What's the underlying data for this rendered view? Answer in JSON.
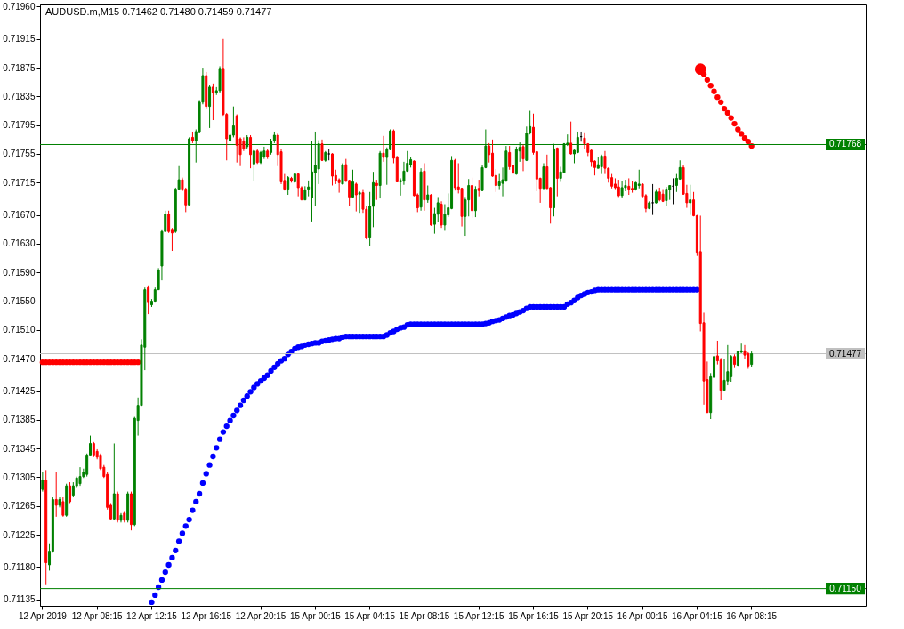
{
  "chart_data": {
    "type": "candlestick",
    "title": "AUDUSD.m,M15  0.71462 0.71480 0.71459 0.71477",
    "categories": [
      "12 Apr 2019",
      null,
      null,
      null,
      null,
      null,
      null,
      null,
      null,
      null,
      null,
      null,
      null,
      null,
      null,
      null,
      "12 Apr 08:15",
      null,
      null,
      null,
      null,
      null,
      null,
      null,
      null,
      null,
      null,
      null,
      null,
      null,
      null,
      null,
      "12 Apr 12:15",
      null,
      null,
      null,
      null,
      null,
      null,
      null,
      null,
      null,
      null,
      null,
      null,
      null,
      null,
      null,
      "12 Apr 16:15",
      null,
      null,
      null,
      null,
      null,
      null,
      null,
      null,
      null,
      null,
      null,
      null,
      null,
      null,
      null,
      "12 Apr 20:15",
      null,
      null,
      null,
      null,
      null,
      null,
      null,
      null,
      null,
      null,
      null,
      null,
      null,
      null,
      null,
      "15 Apr 00:15",
      null,
      null,
      null,
      null,
      null,
      null,
      null,
      null,
      null,
      null,
      null,
      null,
      null,
      null,
      null,
      "15 Apr 04:15",
      null,
      null,
      null,
      null,
      null,
      null,
      null,
      null,
      null,
      null,
      null,
      null,
      null,
      null,
      null,
      "15 Apr 08:15",
      null,
      null,
      null,
      null,
      null,
      null,
      null,
      null,
      null,
      null,
      null,
      null,
      null,
      null,
      null,
      "15 Apr 12:15",
      null,
      null,
      null,
      null,
      null,
      null,
      null,
      null,
      null,
      null,
      null,
      null,
      null,
      null,
      null,
      "15 Apr 16:15",
      null,
      null,
      null,
      null,
      null,
      null,
      null,
      null,
      null,
      null,
      null,
      null,
      null,
      null,
      null,
      "15 Apr 20:15",
      null,
      null,
      null,
      null,
      null,
      null,
      null,
      null,
      null,
      null,
      null,
      null,
      null,
      null,
      null,
      "16 Apr 00:15",
      null,
      null,
      null,
      null,
      null,
      null,
      null,
      null,
      null,
      null,
      null,
      null,
      null,
      null,
      null,
      "16 Apr 04:15",
      null,
      null,
      null,
      null,
      null,
      null,
      null,
      null,
      null,
      null,
      null,
      null,
      null,
      null,
      null,
      "16 Apr 08:15"
    ],
    "ohlc": [
      [
        0.71288,
        0.71312,
        0.71285,
        0.71301
      ],
      [
        0.71301,
        0.71315,
        0.71156,
        0.71186
      ],
      [
        0.71183,
        0.71213,
        0.71175,
        0.71202
      ],
      [
        0.71202,
        0.71277,
        0.712,
        0.71274
      ],
      [
        0.71274,
        0.71312,
        0.7125,
        0.71266
      ],
      [
        0.71266,
        0.71277,
        0.71263,
        0.71274
      ],
      [
        0.71271,
        0.71277,
        0.7125,
        0.71252
      ],
      [
        0.71252,
        0.71296,
        0.7125,
        0.71293
      ],
      [
        0.71293,
        0.71298,
        0.71269,
        0.71271
      ],
      [
        0.7128,
        0.71298,
        0.71277,
        0.71293
      ],
      [
        0.71293,
        0.71306,
        0.7129,
        0.71304
      ],
      [
        0.71296,
        0.71319,
        0.71293,
        0.71306
      ],
      [
        0.71306,
        0.71317,
        0.71304,
        0.71312
      ],
      [
        0.71309,
        0.71338,
        0.71306,
        0.71336
      ],
      [
        0.71336,
        0.71363,
        0.71336,
        0.71352
      ],
      [
        0.71352,
        0.71354,
        0.71333,
        0.71336
      ],
      [
        0.71341,
        0.71344,
        0.7133,
        0.71333
      ],
      [
        0.71336,
        0.71338,
        0.71315,
        0.71317
      ],
      [
        0.71319,
        0.71322,
        0.71304,
        0.71306
      ],
      [
        0.71309,
        0.71312,
        0.7126,
        0.71263
      ],
      [
        0.71266,
        0.71269,
        0.71245,
        0.71247
      ],
      [
        0.71247,
        0.71352,
        0.71246,
        0.71282
      ],
      [
        0.71282,
        0.71285,
        0.71242,
        0.71245
      ],
      [
        0.71245,
        0.71255,
        0.71242,
        0.71252
      ],
      [
        0.71255,
        0.71258,
        0.71242,
        0.71245
      ],
      [
        0.71245,
        0.71285,
        0.71242,
        0.71282
      ],
      [
        0.71282,
        0.71285,
        0.71231,
        0.71239
      ],
      [
        0.71239,
        0.71389,
        0.71237,
        0.71387
      ],
      [
        0.71384,
        0.71416,
        0.71363,
        0.71405
      ],
      [
        0.71405,
        0.71497,
        0.71405,
        0.71489
      ],
      [
        0.71486,
        0.71569,
        0.71454,
        0.71566
      ],
      [
        0.71569,
        0.71572,
        0.71532,
        0.71548
      ],
      [
        0.71545,
        0.71553,
        0.71542,
        0.7155
      ],
      [
        0.7155,
        0.71569,
        0.71548,
        0.71566
      ],
      [
        0.71566,
        0.71596,
        0.71566,
        0.71593
      ],
      [
        0.71599,
        0.7165,
        0.71579,
        0.71647
      ],
      [
        0.71647,
        0.71676,
        0.71647,
        0.71671
      ],
      [
        0.71671,
        0.71676,
        0.71645,
        0.71647
      ],
      [
        0.7165,
        0.71652,
        0.7162,
        0.71645
      ],
      [
        0.71647,
        0.71708,
        0.71645,
        0.71706
      ],
      [
        0.71706,
        0.71738,
        0.71706,
        0.71719
      ],
      [
        0.71719,
        0.71722,
        0.71703,
        0.71706
      ],
      [
        0.71706,
        0.71708,
        0.71674,
        0.71684
      ],
      [
        0.71684,
        0.71778,
        0.71684,
        0.71776
      ],
      [
        0.71778,
        0.71786,
        0.7177,
        0.71773
      ],
      [
        0.71773,
        0.71789,
        0.71743,
        0.71786
      ],
      [
        0.71786,
        0.7183,
        0.71784,
        0.71827
      ],
      [
        0.71827,
        0.71875,
        0.71824,
        0.71864
      ],
      [
        0.71864,
        0.71869,
        0.71818,
        0.71821
      ],
      [
        0.71821,
        0.71851,
        0.71791,
        0.71848
      ],
      [
        0.71848,
        0.71853,
        0.71802,
        0.7184
      ],
      [
        0.7184,
        0.71848,
        0.71837,
        0.71843
      ],
      [
        0.71843,
        0.71877,
        0.7184,
        0.71874
      ],
      [
        0.71874,
        0.71915,
        0.71808,
        0.7181
      ],
      [
        0.7181,
        0.71812,
        0.71746,
        0.71776
      ],
      [
        0.71773,
        0.71784,
        0.7177,
        0.71781
      ],
      [
        0.71781,
        0.71821,
        0.71778,
        0.71794
      ],
      [
        0.71808,
        0.7181,
        0.71743,
        0.71767
      ],
      [
        0.71776,
        0.71778,
        0.71738,
        0.71754
      ],
      [
        0.71773,
        0.71778,
        0.71759,
        0.71762
      ],
      [
        0.71765,
        0.71781,
        0.71762,
        0.71778
      ],
      [
        0.71778,
        0.71781,
        0.71735,
        0.71754
      ],
      [
        0.71741,
        0.71762,
        0.71717,
        0.71759
      ],
      [
        0.71759,
        0.71762,
        0.71741,
        0.71743
      ],
      [
        0.71743,
        0.71759,
        0.71741,
        0.71757
      ],
      [
        0.71751,
        0.71765,
        0.71748,
        0.71759
      ],
      [
        0.71759,
        0.71762,
        0.71748,
        0.71751
      ],
      [
        0.71757,
        0.71776,
        0.71754,
        0.71773
      ],
      [
        0.71773,
        0.71786,
        0.7177,
        0.71781
      ],
      [
        0.71781,
        0.71784,
        0.71738,
        0.71754
      ],
      [
        0.71758,
        0.71762,
        0.71713,
        0.71716
      ],
      [
        0.71718,
        0.71727,
        0.71704,
        0.71706
      ],
      [
        0.71706,
        0.71724,
        0.71698,
        0.71722
      ],
      [
        0.71721,
        0.71723,
        0.71715,
        0.71717
      ],
      [
        0.71716,
        0.71729,
        0.71714,
        0.71727
      ],
      [
        0.71727,
        0.71728,
        0.71696,
        0.71708
      ],
      [
        0.71708,
        0.7171,
        0.71691,
        0.71691
      ],
      [
        0.71691,
        0.7171,
        0.71691,
        0.71705
      ],
      [
        0.71706,
        0.71718,
        0.71696,
        0.71709
      ],
      [
        0.71694,
        0.71773,
        0.71661,
        0.7173
      ],
      [
        0.71729,
        0.71786,
        0.71683,
        0.71739
      ],
      [
        0.71734,
        0.71774,
        0.71713,
        0.71769
      ],
      [
        0.71769,
        0.71775,
        0.71745,
        0.71746
      ],
      [
        0.71746,
        0.71759,
        0.71744,
        0.71757
      ],
      [
        0.71755,
        0.71762,
        0.71746,
        0.71755
      ],
      [
        0.71755,
        0.71756,
        0.71711,
        0.71724
      ],
      [
        0.71725,
        0.71733,
        0.71713,
        0.71718
      ],
      [
        0.71719,
        0.71721,
        0.71701,
        0.71715
      ],
      [
        0.71713,
        0.71742,
        0.71713,
        0.7174
      ],
      [
        0.7174,
        0.71748,
        0.71716,
        0.71717
      ],
      [
        0.71718,
        0.71719,
        0.71682,
        0.71695
      ],
      [
        0.71695,
        0.71733,
        0.71694,
        0.71716
      ],
      [
        0.71713,
        0.71715,
        0.71675,
        0.71698
      ],
      [
        0.71699,
        0.71703,
        0.71673,
        0.71701
      ],
      [
        0.71701,
        0.71706,
        0.71673,
        0.71678
      ],
      [
        0.71678,
        0.71683,
        0.71636,
        0.71638
      ],
      [
        0.71639,
        0.71702,
        0.71627,
        0.71682
      ],
      [
        0.71682,
        0.7173,
        0.71653,
        0.71715
      ],
      [
        0.71714,
        0.71719,
        0.71691,
        0.71711
      ],
      [
        0.71711,
        0.71759,
        0.71693,
        0.71756
      ],
      [
        0.71756,
        0.7178,
        0.71744,
        0.7175
      ],
      [
        0.7175,
        0.71764,
        0.71712,
        0.71761
      ],
      [
        0.71761,
        0.71789,
        0.7176,
        0.71787
      ],
      [
        0.71787,
        0.71789,
        0.71742,
        0.71749
      ],
      [
        0.71751,
        0.71752,
        0.71716,
        0.71716
      ],
      [
        0.71716,
        0.71721,
        0.71697,
        0.71718
      ],
      [
        0.71717,
        0.71744,
        0.71712,
        0.71731
      ],
      [
        0.71731,
        0.71759,
        0.7173,
        0.71742
      ],
      [
        0.7174,
        0.7175,
        0.71736,
        0.71747
      ],
      [
        0.71745,
        0.71746,
        0.71696,
        0.71697
      ],
      [
        0.71698,
        0.717,
        0.71674,
        0.7168
      ],
      [
        0.71681,
        0.71735,
        0.71676,
        0.7173
      ],
      [
        0.71731,
        0.71742,
        0.71676,
        0.71691
      ],
      [
        0.71691,
        0.71711,
        0.71687,
        0.71698
      ],
      [
        0.71698,
        0.71699,
        0.71655,
        0.71656
      ],
      [
        0.71657,
        0.7168,
        0.71644,
        0.71672
      ],
      [
        0.71671,
        0.71695,
        0.7166,
        0.71687
      ],
      [
        0.71685,
        0.71689,
        0.71652,
        0.71656
      ],
      [
        0.71656,
        0.71685,
        0.71648,
        0.71671
      ],
      [
        0.7167,
        0.717,
        0.71667,
        0.7168
      ],
      [
        0.71679,
        0.71752,
        0.71678,
        0.71746
      ],
      [
        0.71746,
        0.71748,
        0.71704,
        0.71708
      ],
      [
        0.71709,
        0.71742,
        0.717,
        0.71706
      ],
      [
        0.71707,
        0.71708,
        0.71654,
        0.71668
      ],
      [
        0.71668,
        0.71695,
        0.71641,
        0.71691
      ],
      [
        0.71691,
        0.7172,
        0.71668,
        0.71711
      ],
      [
        0.71711,
        0.71722,
        0.71666,
        0.71676
      ],
      [
        0.71676,
        0.7171,
        0.71667,
        0.71706
      ],
      [
        0.71707,
        0.71719,
        0.71696,
        0.71704
      ],
      [
        0.71704,
        0.71739,
        0.71703,
        0.71736
      ],
      [
        0.71736,
        0.71789,
        0.71735,
        0.71766
      ],
      [
        0.71766,
        0.7177,
        0.71743,
        0.71754
      ],
      [
        0.71756,
        0.71775,
        0.71723,
        0.71724
      ],
      [
        0.71725,
        0.71734,
        0.71702,
        0.71711
      ],
      [
        0.71711,
        0.71727,
        0.71706,
        0.71716
      ],
      [
        0.71714,
        0.71736,
        0.71696,
        0.71719
      ],
      [
        0.71718,
        0.71766,
        0.71716,
        0.71759
      ],
      [
        0.71757,
        0.71766,
        0.71733,
        0.71737
      ],
      [
        0.71739,
        0.7175,
        0.71723,
        0.71728
      ],
      [
        0.71727,
        0.71765,
        0.71726,
        0.71761
      ],
      [
        0.71759,
        0.71771,
        0.71744,
        0.71764
      ],
      [
        0.71765,
        0.71768,
        0.71731,
        0.71748
      ],
      [
        0.71746,
        0.71793,
        0.71745,
        0.71784
      ],
      [
        0.71784,
        0.71815,
        0.71782,
        0.71793
      ],
      [
        0.71792,
        0.71811,
        0.71754,
        0.71757
      ],
      [
        0.71758,
        0.71759,
        0.71703,
        0.7172
      ],
      [
        0.71721,
        0.71722,
        0.71687,
        0.71707
      ],
      [
        0.71707,
        0.71742,
        0.71706,
        0.71737
      ],
      [
        0.71737,
        0.71754,
        0.71706,
        0.71707
      ],
      [
        0.71708,
        0.71709,
        0.71658,
        0.7168
      ],
      [
        0.7168,
        0.71769,
        0.71668,
        0.71762
      ],
      [
        0.71763,
        0.71764,
        0.71696,
        0.71721
      ],
      [
        0.71721,
        0.71737,
        0.71716,
        0.7173
      ],
      [
        0.71729,
        0.7177,
        0.71728,
        0.71769
      ],
      [
        0.71768,
        0.71782,
        0.71766,
        0.7177
      ],
      [
        0.7177,
        0.718,
        0.71754,
        0.71755
      ],
      [
        0.71755,
        0.71761,
        0.71742,
        0.7176
      ],
      [
        0.71757,
        0.71786,
        0.71756,
        0.71778
      ],
      [
        0.71779,
        0.71786,
        0.71772,
        0.71779
      ],
      [
        0.71777,
        0.71785,
        0.71762,
        0.71769
      ],
      [
        0.71769,
        0.7177,
        0.71752,
        0.71757
      ],
      [
        0.7176,
        0.71761,
        0.71737,
        0.71744
      ],
      [
        0.71745,
        0.71746,
        0.71725,
        0.71736
      ],
      [
        0.71735,
        0.7175,
        0.71735,
        0.7174
      ],
      [
        0.71737,
        0.71754,
        0.71727,
        0.71752
      ],
      [
        0.71752,
        0.71759,
        0.71727,
        0.71735
      ],
      [
        0.71735,
        0.71736,
        0.71715,
        0.71721
      ],
      [
        0.71722,
        0.71727,
        0.71707,
        0.7171
      ],
      [
        0.71713,
        0.71721,
        0.71706,
        0.71708
      ],
      [
        0.71709,
        0.71719,
        0.71695,
        0.71697
      ],
      [
        0.71697,
        0.71717,
        0.71694,
        0.71708
      ],
      [
        0.71708,
        0.71719,
        0.71703,
        0.71711
      ],
      [
        0.7171,
        0.71721,
        0.71698,
        0.71706
      ],
      [
        0.71707,
        0.71717,
        0.71701,
        0.71705
      ],
      [
        0.71706,
        0.71716,
        0.71704,
        0.71715
      ],
      [
        0.71711,
        0.71733,
        0.71707,
        0.71713
      ],
      [
        0.71713,
        0.71714,
        0.71694,
        0.71696
      ],
      [
        0.71697,
        0.71699,
        0.71674,
        0.71679
      ],
      [
        0.71679,
        0.71689,
        0.71678,
        0.71687
      ],
      [
        0.71687,
        0.71713,
        0.7167,
        0.71687
      ],
      [
        0.71687,
        0.71706,
        0.71686,
        0.71702
      ],
      [
        0.71702,
        0.71708,
        0.71689,
        0.71691
      ],
      [
        0.71699,
        0.71706,
        0.71688,
        0.71689
      ],
      [
        0.7169,
        0.71709,
        0.71683,
        0.71706
      ],
      [
        0.71705,
        0.71711,
        0.71691,
        0.71711
      ],
      [
        0.7171,
        0.71721,
        0.71685,
        0.7171
      ],
      [
        0.71711,
        0.71727,
        0.71702,
        0.71721
      ],
      [
        0.7172,
        0.71746,
        0.71719,
        0.71736
      ],
      [
        0.71736,
        0.7174,
        0.71698,
        0.71699
      ],
      [
        0.717,
        0.71712,
        0.7168,
        0.71687
      ],
      [
        0.71687,
        0.71712,
        0.7167,
        0.71691
      ],
      [
        0.71691,
        0.71702,
        0.71668,
        0.71669
      ],
      [
        0.71669,
        0.7167,
        0.71613,
        0.71618
      ],
      [
        0.71619,
        0.71669,
        0.71508,
        0.71519
      ],
      [
        0.7152,
        0.71534,
        0.71406,
        0.71439
      ],
      [
        0.71441,
        0.71466,
        0.71395,
        0.71395
      ],
      [
        0.71395,
        0.7145,
        0.71386,
        0.71445
      ],
      [
        0.71444,
        0.71485,
        0.71443,
        0.71473
      ],
      [
        0.71474,
        0.71495,
        0.71462,
        0.71467
      ],
      [
        0.71468,
        0.71471,
        0.71412,
        0.71426
      ],
      [
        0.71426,
        0.71469,
        0.71425,
        0.7144
      ],
      [
        0.71439,
        0.71489,
        0.71433,
        0.71452
      ],
      [
        0.71445,
        0.71475,
        0.71438,
        0.71473
      ],
      [
        0.71473,
        0.71476,
        0.71457,
        0.71462
      ],
      [
        0.71461,
        0.71481,
        0.7146,
        0.7148
      ],
      [
        0.71479,
        0.71491,
        0.71478,
        0.71481
      ],
      [
        0.71481,
        0.71489,
        0.7147,
        0.71475
      ],
      [
        0.71477,
        0.71479,
        0.71456,
        0.7146
      ],
      [
        0.71462,
        0.7148,
        0.71459,
        0.71477
      ]
    ],
    "colors": [
      "#008000",
      "#ff0000",
      "#008000",
      "#008000",
      "#ff0000",
      "#008000",
      "#ff0000",
      "#008000",
      "#ff0000",
      "#008000",
      "#008000",
      "#008000",
      "#008000",
      "#008000",
      "#008000",
      "#ff0000",
      "#ff0000",
      "#ff0000",
      "#ff0000",
      "#ff0000",
      "#ff0000",
      "#008000",
      "#ff0000",
      "#008000",
      "#ff0000",
      "#008000",
      "#ff0000",
      "#008000",
      "#008000",
      "#008000",
      "#008000",
      "#ff0000",
      "#008000",
      "#008000",
      "#008000",
      "#008000",
      "#008000",
      "#ff0000",
      "#ff0000",
      "#008000",
      "#008000",
      "#ff0000",
      "#ff0000",
      "#008000",
      "#ff0000",
      "#008000",
      "#008000",
      "#008000",
      "#ff0000",
      "#008000",
      "#ff0000",
      "#008000",
      "#008000",
      "#ff0000",
      "#ff0000",
      "#008000",
      "#008000",
      "#ff0000",
      "#ff0000",
      "#ff0000",
      "#008000",
      "#ff0000",
      "#008000",
      "#ff0000",
      "#008000",
      "#008000",
      "#ff0000",
      "#008000",
      "#008000",
      "#ff0000",
      "#ff0000",
      "#ff0000",
      "#008000",
      "#ff0000",
      "#008000",
      "#ff0000",
      "#ff0000",
      "#008000",
      "#008000",
      "#008000",
      "#008000",
      "#008000",
      "#ff0000",
      "#008000",
      "#000000",
      "#ff0000",
      "#ff0000",
      "#ff0000",
      "#008000",
      "#ff0000",
      "#ff0000",
      "#008000",
      "#ff0000",
      "#008000",
      "#ff0000",
      "#ff0000",
      "#008000",
      "#008000",
      "#ff0000",
      "#008000",
      "#ff0000",
      "#008000",
      "#008000",
      "#ff0000",
      "#ff0000",
      "#008000",
      "#008000",
      "#008000",
      "#008000",
      "#ff0000",
      "#ff0000",
      "#008000",
      "#ff0000",
      "#008000",
      "#ff0000",
      "#008000",
      "#008000",
      "#ff0000",
      "#008000",
      "#008000",
      "#008000",
      "#ff0000",
      "#ff0000",
      "#ff0000",
      "#008000",
      "#008000",
      "#ff0000",
      "#008000",
      "#ff0000",
      "#008000",
      "#008000",
      "#ff0000",
      "#ff0000",
      "#ff0000",
      "#008000",
      "#008000",
      "#008000",
      "#ff0000",
      "#ff0000",
      "#008000",
      "#008000",
      "#ff0000",
      "#008000",
      "#008000",
      "#ff0000",
      "#ff0000",
      "#ff0000",
      "#008000",
      "#ff0000",
      "#ff0000",
      "#008000",
      "#ff0000",
      "#008000",
      "#008000",
      "#008000",
      "#ff0000",
      "#008000",
      "#008000",
      "#000000",
      "#ff0000",
      "#ff0000",
      "#ff0000",
      "#ff0000",
      "#008000",
      "#008000",
      "#ff0000",
      "#ff0000",
      "#ff0000",
      "#ff0000",
      "#ff0000",
      "#008000",
      "#008000",
      "#ff0000",
      "#ff0000",
      "#008000",
      "#008000",
      "#ff0000",
      "#ff0000",
      "#008000",
      "#000000",
      "#008000",
      "#ff0000",
      "#ff0000",
      "#008000",
      "#008000",
      "#000000",
      "#008000",
      "#008000",
      "#ff0000",
      "#ff0000",
      "#008000",
      "#ff0000",
      "#ff0000",
      "#ff0000",
      "#ff0000",
      "#ff0000",
      "#008000",
      "#008000",
      "#ff0000",
      "#ff0000",
      "#008000",
      "#008000",
      "#008000",
      "#ff0000",
      "#008000",
      "#008000",
      "#ff0000",
      "#ff0000",
      "#008000"
    ],
    "series": [
      {
        "type": "scatter",
        "color": "#0000ff",
        "values": [
          null,
          null,
          null,
          null,
          null,
          null,
          null,
          null,
          null,
          null,
          null,
          null,
          null,
          null,
          null,
          null,
          null,
          null,
          null,
          null,
          null,
          null,
          null,
          null,
          null,
          null,
          null,
          null,
          null,
          null,
          null,
          null,
          0.71131,
          0.71141,
          0.71152,
          0.71162,
          0.71173,
          0.71183,
          0.71193,
          0.71203,
          0.71216,
          0.71227,
          0.71237,
          0.71246,
          0.71259,
          0.71271,
          0.71282,
          0.71297,
          0.7131,
          0.71322,
          0.71334,
          0.71346,
          0.71358,
          0.71368,
          0.71376,
          0.71384,
          0.71391,
          0.71398,
          0.71405,
          0.71412,
          0.71418,
          0.71424,
          0.7143,
          0.71435,
          0.71439,
          0.71443,
          0.71447,
          0.71453,
          0.71458,
          0.71463,
          0.71467,
          0.7147,
          0.71476,
          0.7148,
          0.71484,
          0.71486,
          0.71487,
          0.71489,
          0.7149,
          0.71491,
          0.71492,
          0.71492,
          0.71494,
          0.71495,
          0.71496,
          0.71497,
          0.71498,
          0.71498,
          0.715,
          0.71501,
          0.71501,
          0.71501,
          0.71501,
          0.71501,
          0.71501,
          0.71501,
          0.71501,
          0.71501,
          0.71501,
          0.71501,
          0.71501,
          0.71503,
          0.71506,
          0.71508,
          0.71511,
          0.71513,
          0.71514,
          0.71517,
          0.71518,
          0.71518,
          0.71518,
          0.71518,
          0.71518,
          0.71518,
          0.71518,
          0.71518,
          0.71518,
          0.71518,
          0.71518,
          0.71518,
          0.71518,
          0.71518,
          0.71518,
          0.71518,
          0.71518,
          0.71518,
          0.71518,
          0.71518,
          0.71518,
          0.71518,
          0.71519,
          0.7152,
          0.71522,
          0.71523,
          0.71524,
          0.71526,
          0.71528,
          0.7153,
          0.71531,
          0.71533,
          0.71535,
          0.71537,
          0.7154,
          0.71542,
          0.71542,
          0.71542,
          0.71542,
          0.71542,
          0.71542,
          0.71542,
          0.71542,
          0.71542,
          0.71542,
          0.71542,
          0.71546,
          0.71548,
          0.71551,
          0.71555,
          0.71558,
          0.7156,
          0.71562,
          0.71563,
          0.71565,
          0.71566,
          0.71566,
          0.71566,
          0.71566,
          0.71566,
          0.71566,
          0.71566,
          0.71566,
          0.71566,
          0.71566,
          0.71566,
          0.71566,
          0.71566,
          0.71566,
          0.71566,
          0.71566,
          0.71566,
          0.71566,
          0.71566,
          0.71566,
          0.71566,
          0.71566,
          0.71566,
          0.71566,
          0.71566,
          0.71566,
          0.71566,
          0.71566,
          0.71566,
          0.71566,
          null,
          null,
          null,
          null,
          null,
          null,
          null,
          null,
          null,
          null,
          null,
          null,
          null,
          null,
          null,
          null
        ]
      },
      {
        "type": "bubble",
        "color": "#ff0000",
        "values": [
          0.71465,
          0.71465,
          0.71465,
          0.71465,
          0.71465,
          0.71465,
          0.71465,
          0.71465,
          0.71465,
          0.71465,
          0.71465,
          0.71465,
          0.71465,
          0.71465,
          0.71465,
          0.71465,
          0.71465,
          0.71465,
          0.71465,
          0.71465,
          0.71465,
          0.71465,
          0.71465,
          0.71465,
          0.71465,
          0.71465,
          0.71465,
          0.71465,
          0.71465,
          null,
          null,
          null,
          null,
          null,
          null,
          null,
          null,
          null,
          null,
          null,
          null,
          null,
          null,
          null,
          null,
          null,
          null,
          null,
          null,
          null,
          null,
          null,
          null,
          null,
          null,
          null,
          null,
          null,
          null,
          null,
          null,
          null,
          null,
          null,
          null,
          null,
          null,
          null,
          null,
          null,
          null,
          null,
          null,
          null,
          null,
          null,
          null,
          null,
          null,
          null,
          null,
          null,
          null,
          null,
          null,
          null,
          null,
          null,
          null,
          null,
          null,
          null,
          null,
          null,
          null,
          null,
          null,
          null,
          null,
          null,
          null,
          null,
          null,
          null,
          null,
          null,
          null,
          null,
          null,
          null,
          null,
          null,
          null,
          null,
          null,
          null,
          null,
          null,
          null,
          null,
          null,
          null,
          null,
          null,
          null,
          null,
          null,
          null,
          null,
          null,
          null,
          null,
          null,
          null,
          null,
          null,
          null,
          null,
          null,
          null,
          null,
          null,
          null,
          null,
          null,
          null,
          null,
          null,
          null,
          null,
          null,
          null,
          null,
          null,
          null,
          null,
          null,
          null,
          null,
          null,
          null,
          null,
          null,
          null,
          null,
          null,
          null,
          null,
          null,
          null,
          null,
          null,
          null,
          null,
          null,
          null,
          null,
          null,
          null,
          null,
          null,
          null,
          null,
          null,
          null,
          null,
          null,
          null,
          null,
          null,
          null,
          null,
          null,
          0.71873,
          0.71866,
          0.71858,
          0.7185,
          0.71842,
          0.71834,
          0.71827,
          0.71818,
          0.71812,
          0.71805,
          0.71797,
          0.71789,
          0.71783,
          0.71777,
          0.71772,
          0.71766
        ],
        "sizes": [
          0.25,
          0.25,
          0.25,
          0.25,
          0.25,
          0.25,
          0.25,
          0.25,
          0.25,
          0.25,
          0.25,
          0.25,
          0.25,
          0.25,
          0.25,
          0.25,
          0.25,
          0.25,
          0.25,
          0.25,
          0.25,
          0.25,
          0.25,
          0.25,
          0.25,
          0.25,
          0.25,
          0.25,
          0.25,
          null,
          null,
          null,
          null,
          null,
          null,
          null,
          null,
          null,
          null,
          null,
          null,
          null,
          null,
          null,
          null,
          null,
          null,
          null,
          null,
          null,
          null,
          null,
          null,
          null,
          null,
          null,
          null,
          null,
          null,
          null,
          null,
          null,
          null,
          null,
          null,
          null,
          null,
          null,
          null,
          null,
          null,
          null,
          null,
          null,
          null,
          null,
          null,
          null,
          null,
          null,
          null,
          null,
          null,
          null,
          null,
          null,
          null,
          null,
          null,
          null,
          null,
          null,
          null,
          null,
          null,
          null,
          null,
          null,
          null,
          null,
          null,
          null,
          null,
          null,
          null,
          null,
          null,
          null,
          null,
          null,
          null,
          null,
          null,
          null,
          null,
          null,
          null,
          null,
          null,
          null,
          null,
          null,
          null,
          null,
          null,
          null,
          null,
          null,
          null,
          null,
          null,
          null,
          null,
          null,
          null,
          null,
          null,
          null,
          null,
          null,
          null,
          null,
          null,
          null,
          null,
          null,
          null,
          null,
          null,
          null,
          null,
          null,
          null,
          null,
          null,
          null,
          null,
          null,
          null,
          null,
          null,
          null,
          null,
          null,
          null,
          null,
          null,
          null,
          null,
          null,
          null,
          null,
          null,
          null,
          null,
          null,
          null,
          null,
          null,
          null,
          null,
          null,
          null,
          null,
          null,
          null,
          null,
          null,
          null,
          null,
          null,
          null,
          null,
          1,
          0.25,
          0.25,
          0.25,
          0.25,
          0.25,
          0.25,
          0.25,
          0.25,
          0.25,
          0.25,
          0.25,
          0.25,
          0.25,
          0.25,
          0.25
        ]
      }
    ],
    "marker": "circle",
    "ylim": [
      0.71126,
      0.71963
    ],
    "yticks": [
      {
        "value": 0.7196,
        "label": "0.71960"
      },
      0.71915,
      0.71875,
      0.71835,
      0.71795,
      0.71755,
      0.71715,
      {
        "value": 0.7167,
        "label": "0.71670"
      },
      {
        "value": 0.7163,
        "label": "0.71630"
      },
      {
        "value": 0.7159,
        "label": "0.71590"
      },
      {
        "value": 0.7155,
        "label": "0.71550"
      },
      {
        "value": 0.7151,
        "label": "0.71510"
      },
      {
        "value": 0.7147,
        "label": "0.71470"
      },
      0.71425,
      0.71385,
      0.71345,
      0.71305,
      0.71265,
      0.71225,
      {
        "value": 0.7118,
        "label": "0.71180"
      },
      0.71135
    ],
    "ref_lines": [
      {
        "axis": "y",
        "value": 0.71768,
        "label": "0.71768",
        "color": "#008000"
      },
      {
        "axis": "y",
        "value": 0.7115,
        "label": "0.71150",
        "color": "#008000"
      },
      {
        "axis": "y",
        "value": 0.71477,
        "label": "0.71477",
        "color": "#c0c0c0"
      }
    ],
    "grid": false
  }
}
